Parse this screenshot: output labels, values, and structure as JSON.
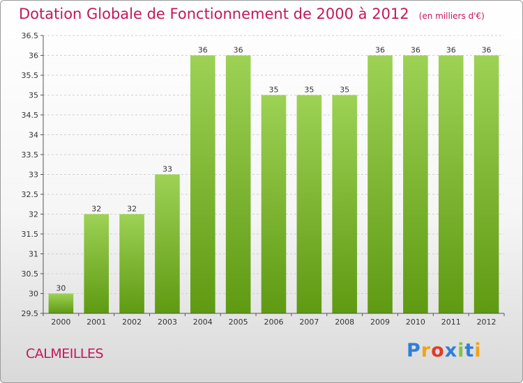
{
  "header": {
    "title": "Dotation Globale de Fonctionnement de 2000 à 2012",
    "unit": "(en milliers d'€)"
  },
  "footer": {
    "commune": "CALMEILLES",
    "logo_text": "Proxiti"
  },
  "colors": {
    "title": "#c2185b",
    "bar_top": "#9dd255",
    "bar_bottom": "#5f9a12",
    "axis": "#555555",
    "grid": "#d0d0d0"
  },
  "chart_data": {
    "type": "bar",
    "title": "Dotation Globale de Fonctionnement de 2000 à 2012",
    "xlabel": "",
    "ylabel": "",
    "categories": [
      "2000",
      "2001",
      "2002",
      "2003",
      "2004",
      "2005",
      "2006",
      "2007",
      "2008",
      "2009",
      "2010",
      "2011",
      "2012"
    ],
    "values": [
      30,
      32,
      32,
      33,
      36,
      36,
      35,
      35,
      35,
      36,
      36,
      36,
      36
    ],
    "data_labels": [
      "30",
      "32",
      "32",
      "33",
      "36",
      "36",
      "35",
      "35",
      "35",
      "36",
      "36",
      "36",
      "36"
    ],
    "ylim": [
      29.5,
      36.5
    ],
    "yticks": [
      "29.5",
      "30",
      "30.5",
      "31",
      "31.5",
      "32",
      "32.5",
      "33",
      "33.5",
      "34",
      "34.5",
      "35",
      "35.5",
      "36",
      "36.5"
    ],
    "grid": true
  }
}
